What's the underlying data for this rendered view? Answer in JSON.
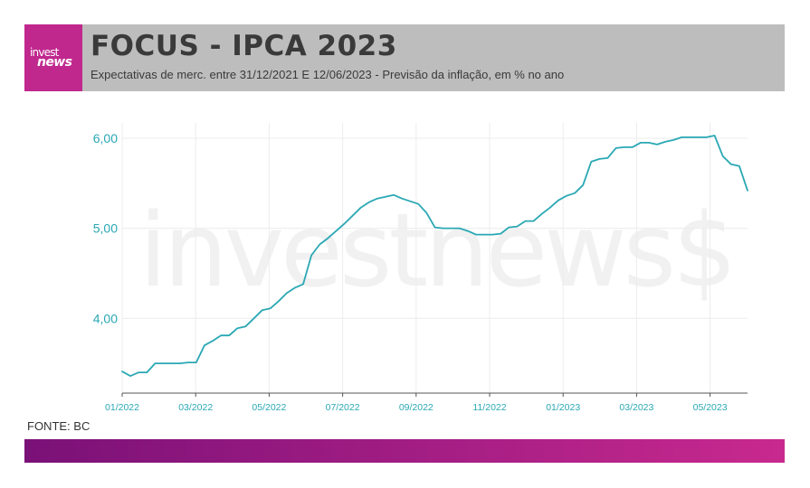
{
  "brand": {
    "logo_top": "invest",
    "logo_bottom": "news",
    "watermark": "investnews$",
    "colors": {
      "logo_bg": "#c0288e",
      "header_bg": "#bdbdbd",
      "line": "#2aa8b4",
      "footer_start": "#7a1178",
      "footer_end": "#c8298e"
    }
  },
  "header": {
    "title": "FOCUS - IPCA 2023",
    "subtitle": "Expectativas de merc. entre 31/12/2021 E 12/06/2023 - Previsão da inflação, em % no ano"
  },
  "source": "FONTE: BC",
  "chart_data": {
    "type": "line",
    "title": "",
    "xlabel": "",
    "ylabel": "",
    "ylim": [
      3.17,
      6.17
    ],
    "y_ticks": [
      4.0,
      5.0,
      6.0
    ],
    "y_tick_labels": [
      "4,00",
      "5,00",
      "6,00"
    ],
    "x_tick_labels": [
      "01/2022",
      "03/2022",
      "05/2022",
      "07/2022",
      "09/2022",
      "11/2022",
      "01/2023",
      "03/2023",
      "05/2023"
    ],
    "grid": true,
    "series": [
      {
        "values": [
          3.41,
          3.36,
          3.4,
          3.4,
          3.5,
          3.5,
          3.5,
          3.5,
          3.51,
          3.51,
          3.7,
          3.75,
          3.81,
          3.81,
          3.89,
          3.91,
          4.0,
          4.09,
          4.11,
          4.19,
          4.28,
          4.34,
          4.38,
          4.7,
          4.82,
          4.89,
          4.97,
          5.05,
          5.14,
          5.23,
          5.29,
          5.33,
          5.35,
          5.37,
          5.33,
          5.3,
          5.27,
          5.17,
          5.01,
          5.0,
          5.0,
          5.0,
          4.97,
          4.93,
          4.93,
          4.93,
          4.94,
          5.01,
          5.02,
          5.08,
          5.08,
          5.16,
          5.23,
          5.31,
          5.36,
          5.39,
          5.48,
          5.74,
          5.77,
          5.78,
          5.89,
          5.9,
          5.9,
          5.95,
          5.95,
          5.93,
          5.96,
          5.98,
          6.01,
          6.01,
          6.01,
          6.01,
          6.03,
          5.8,
          5.71,
          5.69,
          5.42
        ]
      }
    ]
  }
}
